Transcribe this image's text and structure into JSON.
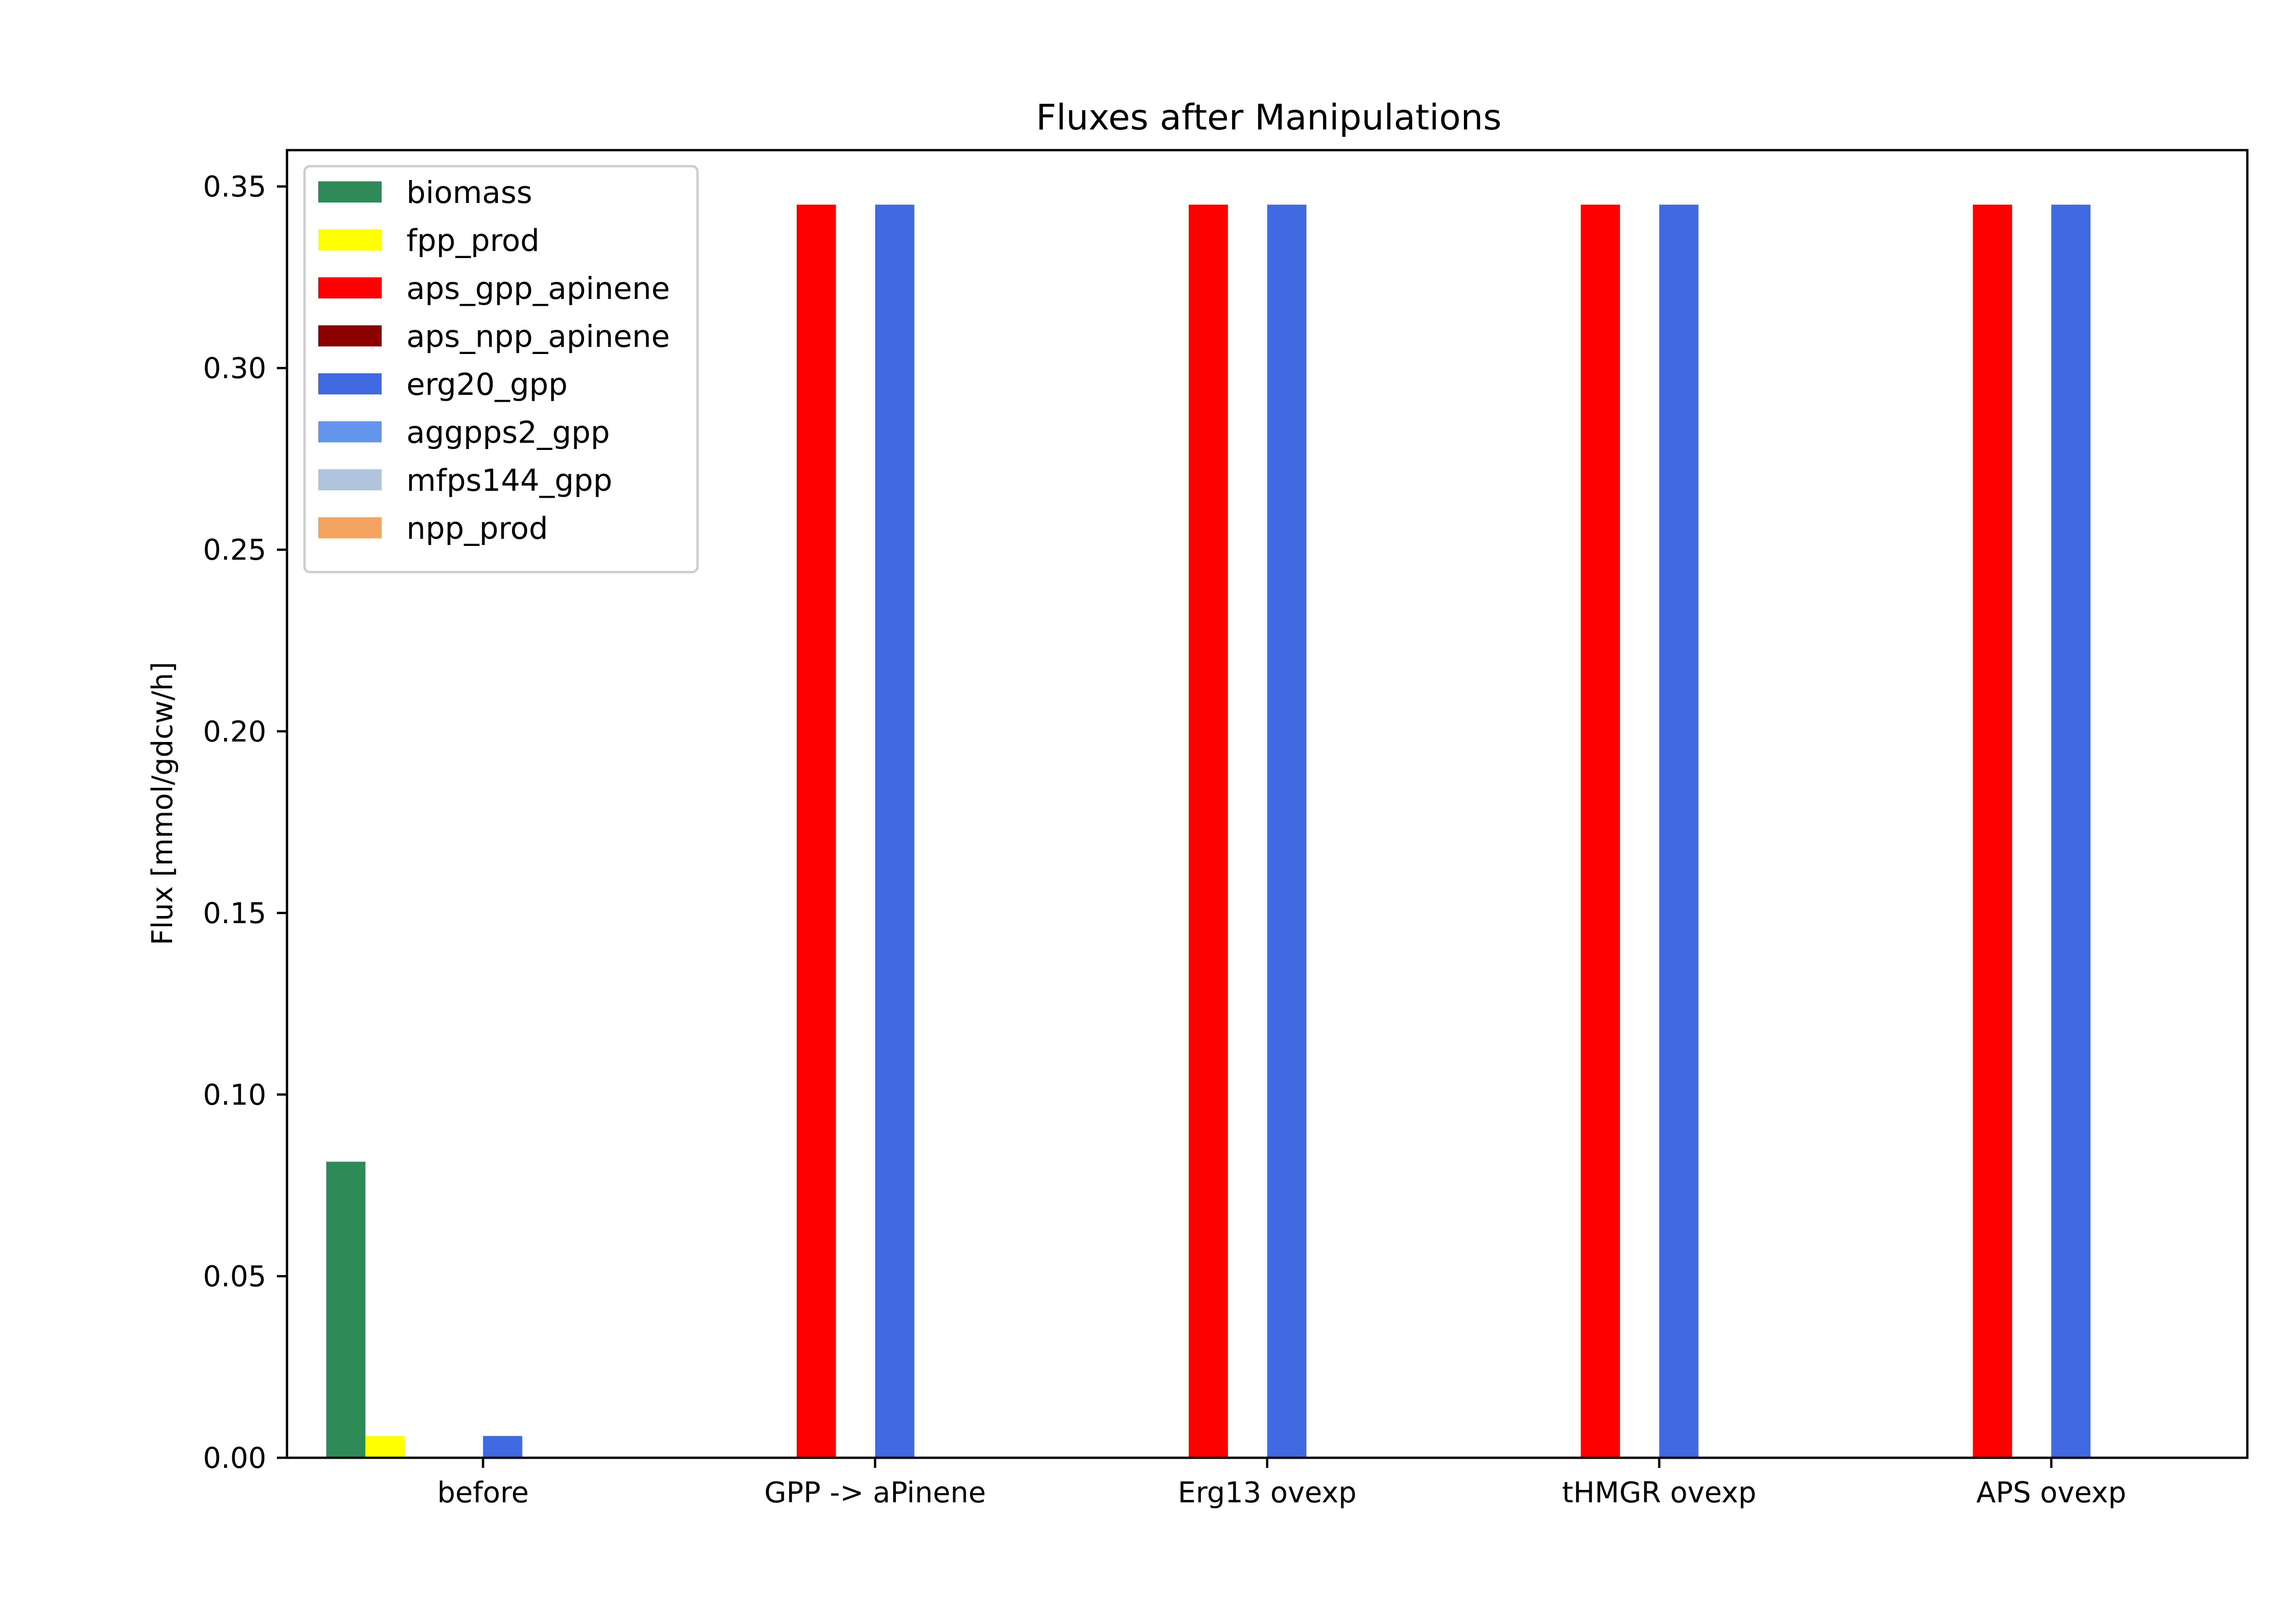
{
  "chart_data": {
    "type": "bar",
    "title": "Fluxes after Manipulations",
    "xlabel": "",
    "ylabel": "Flux [mmol/gdcw/h]",
    "categories": [
      "before",
      "GPP -> aPinene",
      "Erg13 ovexp",
      "tHMGR ovexp",
      "APS ovexp"
    ],
    "ylim": [
      0,
      0.36
    ],
    "yticks": [
      0.0,
      0.05,
      0.1,
      0.15,
      0.2,
      0.25,
      0.3,
      0.35
    ],
    "ytick_labels": [
      "0.00",
      "0.05",
      "0.10",
      "0.15",
      "0.20",
      "0.25",
      "0.30",
      "0.35"
    ],
    "grid": false,
    "legend_position": "top-left",
    "series": [
      {
        "name": "biomass",
        "color": "#2e8b57",
        "values": [
          0.0815,
          0,
          0,
          0,
          0
        ]
      },
      {
        "name": "fpp_prod",
        "color": "#ffff00",
        "values": [
          0.006,
          0,
          0,
          0,
          0
        ]
      },
      {
        "name": "aps_gpp_apinene",
        "color": "#ff0000",
        "values": [
          0,
          0.345,
          0.345,
          0.345,
          0.345
        ]
      },
      {
        "name": "aps_npp_apinene",
        "color": "#8b0000",
        "values": [
          0,
          0,
          0,
          0,
          0
        ]
      },
      {
        "name": "erg20_gpp",
        "color": "#4169e1",
        "values": [
          0.006,
          0.345,
          0.345,
          0.345,
          0.345
        ]
      },
      {
        "name": "aggpps2_gpp",
        "color": "#6495ed",
        "values": [
          0,
          0,
          0,
          0,
          0
        ]
      },
      {
        "name": "mfps144_gpp",
        "color": "#b0c4de",
        "values": [
          0,
          0,
          0,
          0,
          0
        ]
      },
      {
        "name": "npp_prod",
        "color": "#f4a460",
        "values": [
          0,
          0,
          0,
          0,
          0
        ]
      }
    ]
  }
}
